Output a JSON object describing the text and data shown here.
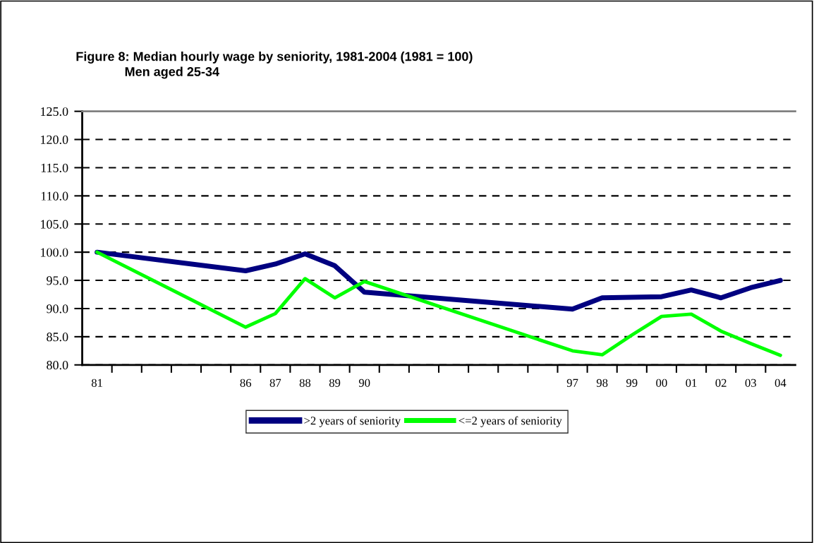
{
  "chart_data": {
    "type": "line",
    "title": "Figure 8: Median hourly wage by seniority, 1981-2004 (1981 = 100)",
    "subtitle": "Men aged 25-34",
    "series": [
      {
        "name": ">2 years of seniority",
        "color": "#000080",
        "x": [
          1981,
          1986,
          1987,
          1988,
          1989,
          1990,
          1997,
          1998,
          1999,
          2000,
          2001,
          2002,
          2003,
          2004
        ],
        "values": [
          100.0,
          96.7,
          97.9,
          99.7,
          97.6,
          92.9,
          89.9,
          91.9,
          92.0,
          92.1,
          93.3,
          91.9,
          93.7,
          95.0
        ]
      },
      {
        "name": "<=2 years of seniority",
        "color": "#00ff00",
        "x": [
          1981,
          1986,
          1987,
          1988,
          1989,
          1990,
          1997,
          1998,
          1999,
          2000,
          2001,
          2002,
          2003,
          2004
        ],
        "values": [
          100.0,
          86.7,
          89.1,
          95.3,
          91.9,
          94.8,
          82.5,
          81.8,
          85.3,
          88.6,
          89.0,
          86.0,
          83.8,
          81.7
        ]
      }
    ],
    "xlim": [
      1980.5,
      2004.5
    ],
    "xticks": [
      {
        "value": 1981,
        "label": "81"
      },
      {
        "value": 1986,
        "label": "86"
      },
      {
        "value": 1987,
        "label": "87"
      },
      {
        "value": 1988,
        "label": "88"
      },
      {
        "value": 1989,
        "label": "89"
      },
      {
        "value": 1990,
        "label": "90"
      },
      {
        "value": 1997,
        "label": "97"
      },
      {
        "value": 1998,
        "label": "98"
      },
      {
        "value": 1999,
        "label": "99"
      },
      {
        "value": 2000,
        "label": "00"
      },
      {
        "value": 2001,
        "label": "01"
      },
      {
        "value": 2002,
        "label": "02"
      },
      {
        "value": 2003,
        "label": "03"
      },
      {
        "value": 2004,
        "label": "04"
      },
      {
        "value": 1981.5,
        "label": null
      },
      {
        "value": 1982.5,
        "label": null
      },
      {
        "value": 1983.5,
        "label": null
      },
      {
        "value": 1984.5,
        "label": null
      },
      {
        "value": 1985.5,
        "label": null
      },
      {
        "value": 1986.5,
        "label": null
      },
      {
        "value": 1987.5,
        "label": null
      },
      {
        "value": 1988.5,
        "label": null
      },
      {
        "value": 1989.5,
        "label": null
      },
      {
        "value": 1990.5,
        "label": null
      },
      {
        "value": 1991.5,
        "label": null
      },
      {
        "value": 1992.5,
        "label": null
      },
      {
        "value": 1993.5,
        "label": null
      },
      {
        "value": 1994.5,
        "label": null
      },
      {
        "value": 1995.5,
        "label": null
      },
      {
        "value": 1996.5,
        "label": null
      },
      {
        "value": 1997.5,
        "label": null
      },
      {
        "value": 1998.5,
        "label": null
      },
      {
        "value": 1999.5,
        "label": null
      },
      {
        "value": 2000.5,
        "label": null
      },
      {
        "value": 2001.5,
        "label": null
      },
      {
        "value": 2002.5,
        "label": null
      },
      {
        "value": 2003.5,
        "label": null
      }
    ],
    "ylim": [
      80,
      125
    ],
    "yticks": [
      {
        "value": 80,
        "label": "80.0"
      },
      {
        "value": 85,
        "label": "85.0"
      },
      {
        "value": 90,
        "label": "90.0"
      },
      {
        "value": 95,
        "label": "95.0"
      },
      {
        "value": 100,
        "label": "100.0"
      },
      {
        "value": 105,
        "label": "105.0"
      },
      {
        "value": 110,
        "label": "110.0"
      },
      {
        "value": 115,
        "label": "115.0"
      },
      {
        "value": 120,
        "label": "120.0"
      },
      {
        "value": 125,
        "label": "125.0"
      }
    ],
    "grid": "y",
    "line_style": "solid",
    "marker": "none",
    "legend": "bottom"
  }
}
